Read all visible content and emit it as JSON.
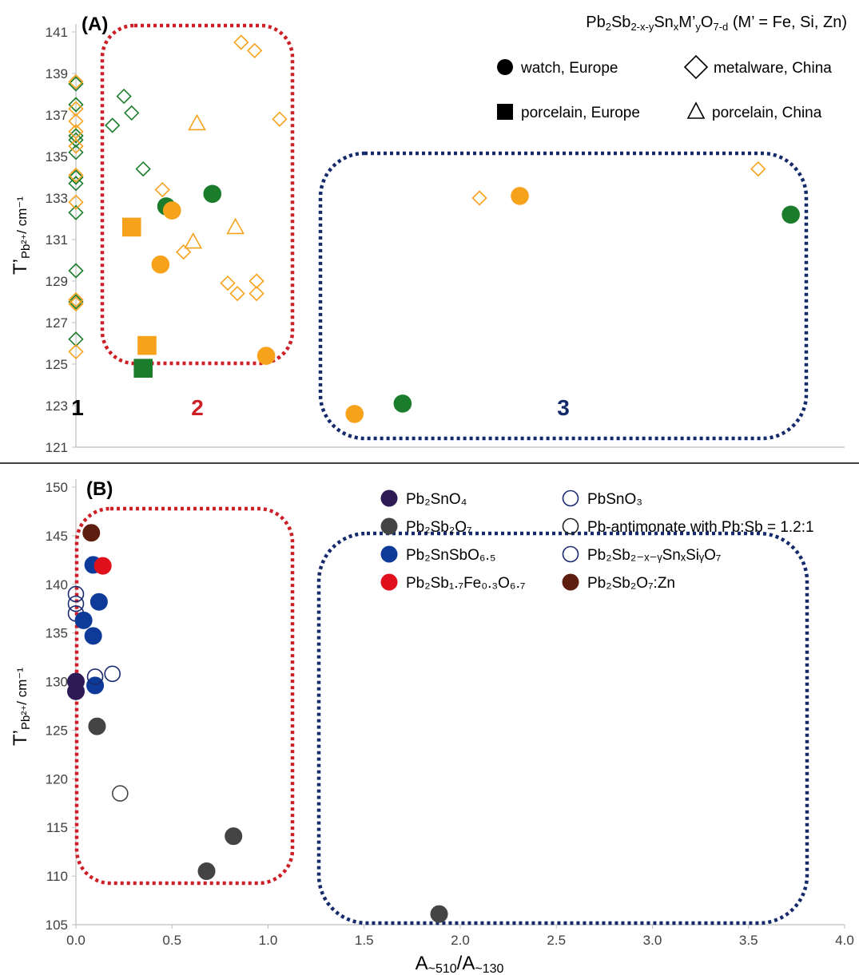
{
  "colors": {
    "green": "#1b7d2c",
    "orange": "#f7a21b",
    "red_dash": "#cc1f26",
    "navy_dash": "#142a6b",
    "purple": "#2e1a55",
    "grey": "#444444",
    "blue": "#0e3a9a",
    "red": "#e0101c",
    "brown": "#5e1e0f",
    "navy_open": "#1a2a70"
  },
  "chart_data": [
    {
      "type": "scatter",
      "panel_label": "(A)",
      "formula": {
        "parts": [
          {
            "t": "Pb",
            "sub": false
          },
          {
            "t": "2",
            "sub": true
          },
          {
            "t": "Sb",
            "sub": false
          },
          {
            "t": "2-x-y",
            "sub": true
          },
          {
            "t": "Sn",
            "sub": false
          },
          {
            "t": "x",
            "sub": true
          },
          {
            "t": "M’",
            "sub": false
          },
          {
            "t": "y",
            "sub": true
          },
          {
            "t": "O",
            "sub": false
          },
          {
            "t": "7-d",
            "sub": true
          },
          {
            "t": " (M’ = Fe, Si, Zn)",
            "sub": false
          }
        ]
      },
      "ylabel": {
        "main": "T’",
        "sub": "Pb²⁺",
        "unit": "/ cm⁻¹"
      },
      "xlim": [
        0,
        4.0
      ],
      "ylim": [
        121,
        141
      ],
      "yticks": [
        "121",
        "123",
        "125",
        "127",
        "129",
        "131",
        "133",
        "135",
        "137",
        "139",
        "141"
      ],
      "legend": [
        {
          "label": "watch, Europe",
          "marker": "circle",
          "fill": true
        },
        {
          "label": "metalware, China",
          "marker": "diamond",
          "fill": false
        },
        {
          "label": "porcelain, Europe",
          "marker": "square",
          "fill": true
        },
        {
          "label": "porcelain, China",
          "marker": "triangle",
          "fill": false
        }
      ],
      "regions": [
        {
          "label": "1",
          "color": "#000000"
        },
        {
          "label": "2",
          "color": "#cc1f26"
        },
        {
          "label": "3",
          "color": "#142a6b"
        }
      ],
      "series": [
        {
          "name": "watch, Europe",
          "marker": "circle",
          "fill": true,
          "points": [
            {
              "x": 0.47,
              "y": 132.6,
              "c": "green"
            },
            {
              "x": 0.71,
              "y": 133.2,
              "c": "green"
            },
            {
              "x": 1.7,
              "y": 123.1,
              "c": "green"
            },
            {
              "x": 3.72,
              "y": 132.2,
              "c": "green"
            },
            {
              "x": 0.5,
              "y": 132.4,
              "c": "orange"
            },
            {
              "x": 0.44,
              "y": 129.8,
              "c": "orange"
            },
            {
              "x": 0.99,
              "y": 125.4,
              "c": "orange"
            },
            {
              "x": 1.45,
              "y": 122.6,
              "c": "orange"
            },
            {
              "x": 2.31,
              "y": 133.1,
              "c": "orange"
            }
          ]
        },
        {
          "name": "porcelain, Europe",
          "marker": "square",
          "fill": true,
          "points": [
            {
              "x": 0.29,
              "y": 131.6,
              "c": "orange"
            },
            {
              "x": 0.37,
              "y": 125.9,
              "c": "orange"
            },
            {
              "x": 0.35,
              "y": 124.8,
              "c": "green"
            }
          ]
        },
        {
          "name": "metalware, China",
          "marker": "diamond",
          "fill": false,
          "points": [
            {
              "x": 0.0,
              "y": 138.5,
              "c": "green"
            },
            {
              "x": 0.0,
              "y": 137.5,
              "c": "green"
            },
            {
              "x": 0.0,
              "y": 136.0,
              "c": "green"
            },
            {
              "x": 0.0,
              "y": 135.8,
              "c": "green"
            },
            {
              "x": 0.0,
              "y": 135.2,
              "c": "green"
            },
            {
              "x": 0.0,
              "y": 134.0,
              "c": "green"
            },
            {
              "x": 0.0,
              "y": 133.7,
              "c": "green"
            },
            {
              "x": 0.0,
              "y": 132.3,
              "c": "green"
            },
            {
              "x": 0.0,
              "y": 129.5,
              "c": "green"
            },
            {
              "x": 0.0,
              "y": 128.0,
              "c": "green"
            },
            {
              "x": 0.0,
              "y": 126.2,
              "c": "green"
            },
            {
              "x": 0.19,
              "y": 136.5,
              "c": "green"
            },
            {
              "x": 0.25,
              "y": 137.9,
              "c": "green"
            },
            {
              "x": 0.29,
              "y": 137.1,
              "c": "green"
            },
            {
              "x": 0.35,
              "y": 134.4,
              "c": "green"
            },
            {
              "x": 0.0,
              "y": 138.6,
              "c": "orange"
            },
            {
              "x": 0.0,
              "y": 137.3,
              "c": "orange"
            },
            {
              "x": 0.0,
              "y": 136.7,
              "c": "orange"
            },
            {
              "x": 0.0,
              "y": 136.2,
              "c": "orange"
            },
            {
              "x": 0.0,
              "y": 135.5,
              "c": "orange"
            },
            {
              "x": 0.0,
              "y": 134.1,
              "c": "orange"
            },
            {
              "x": 0.0,
              "y": 132.8,
              "c": "orange"
            },
            {
              "x": 0.0,
              "y": 128.1,
              "c": "orange"
            },
            {
              "x": 0.0,
              "y": 127.9,
              "c": "orange"
            },
            {
              "x": 0.0,
              "y": 125.6,
              "c": "orange"
            },
            {
              "x": 0.45,
              "y": 133.4,
              "c": "orange"
            },
            {
              "x": 0.56,
              "y": 130.4,
              "c": "orange"
            },
            {
              "x": 0.79,
              "y": 128.9,
              "c": "orange"
            },
            {
              "x": 0.84,
              "y": 128.4,
              "c": "orange"
            },
            {
              "x": 0.86,
              "y": 140.5,
              "c": "orange"
            },
            {
              "x": 0.93,
              "y": 140.1,
              "c": "orange"
            },
            {
              "x": 0.94,
              "y": 129.0,
              "c": "orange"
            },
            {
              "x": 0.94,
              "y": 128.4,
              "c": "orange"
            },
            {
              "x": 1.06,
              "y": 136.8,
              "c": "orange"
            },
            {
              "x": 2.1,
              "y": 133.0,
              "c": "orange"
            },
            {
              "x": 3.55,
              "y": 134.4,
              "c": "orange"
            }
          ]
        },
        {
          "name": "porcelain, China",
          "marker": "triangle",
          "fill": false,
          "points": [
            {
              "x": 0.63,
              "y": 136.6,
              "c": "orange"
            },
            {
              "x": 0.61,
              "y": 130.9,
              "c": "orange"
            },
            {
              "x": 0.83,
              "y": 131.6,
              "c": "orange"
            }
          ]
        }
      ]
    },
    {
      "type": "scatter",
      "panel_label": "(B)",
      "xlabel": {
        "a": "A",
        "sub1": "~510",
        "slash": "/A",
        "sub2": "~130"
      },
      "ylabel": {
        "main": "T’",
        "sub": "Pb²⁺",
        "unit": "/ cm⁻¹"
      },
      "xlim": [
        0,
        4.0
      ],
      "ylim": [
        105,
        150
      ],
      "xticks": [
        "0.0",
        "0.5",
        "1.0",
        "1.5",
        "2.0",
        "2.5",
        "3.0",
        "3.5",
        "4.0"
      ],
      "yticks": [
        "105",
        "110",
        "115",
        "120",
        "125",
        "130",
        "135",
        "140",
        "145",
        "150"
      ],
      "legend": [
        {
          "label": "Pb₂SnO₄",
          "series": "Pb2SnO4"
        },
        {
          "label": "PbSnO₃",
          "series": "PbSnO3"
        },
        {
          "label": "Pb₂Sb₂O₇",
          "series": "Pb2Sb2O7"
        },
        {
          "label": "Pb-antimonate with Pb:Sb = 1.2:1",
          "series": "Pbantimonate"
        },
        {
          "label": "Pb₂SnSbO₆.₅",
          "series": "Pb2SnSbO65"
        },
        {
          "label": "Pb₂Sb₂₋ₓ₋ᵧSnₓSiᵧO₇",
          "series": "Pb2SbSnSi"
        },
        {
          "label": "Pb₂Sb₁.₇Fe₀.₃O₆.₇",
          "series": "Pb2SbFe"
        },
        {
          "label": "Pb₂Sb₂O₇:Zn",
          "series": "Pb2Sb2O7Zn"
        }
      ],
      "series": [
        {
          "id": "Pb2SnO4",
          "name": "Pb₂SnO₄",
          "fill": true,
          "color": "purple",
          "points": [
            {
              "x": 0.0,
              "y": 130.0
            },
            {
              "x": 0.0,
              "y": 129.0
            }
          ]
        },
        {
          "id": "PbSnO3",
          "name": "PbSnO₃",
          "fill": false,
          "color": "navy_open",
          "points": [
            {
              "x": 0.0,
              "y": 139.0
            },
            {
              "x": 0.0,
              "y": 138.0
            },
            {
              "x": 0.0,
              "y": 137.0
            }
          ]
        },
        {
          "id": "Pb2Sb2O7",
          "name": "Pb₂Sb₂O₇",
          "fill": true,
          "color": "grey",
          "points": [
            {
              "x": 0.11,
              "y": 125.4
            },
            {
              "x": 0.68,
              "y": 110.5
            },
            {
              "x": 0.82,
              "y": 114.1
            },
            {
              "x": 1.89,
              "y": 106.1
            }
          ]
        },
        {
          "id": "Pbantimonate",
          "name": "Pb-antimonate with Pb:Sb = 1.2:1",
          "fill": false,
          "color": "grey",
          "points": [
            {
              "x": 0.23,
              "y": 118.5
            }
          ]
        },
        {
          "id": "Pb2SnSbO65",
          "name": "Pb₂SnSbO₆.₅",
          "fill": true,
          "color": "blue",
          "points": [
            {
              "x": 0.09,
              "y": 142.0
            },
            {
              "x": 0.12,
              "y": 138.2
            },
            {
              "x": 0.04,
              "y": 136.3
            },
            {
              "x": 0.09,
              "y": 134.7
            },
            {
              "x": 0.1,
              "y": 129.6
            }
          ]
        },
        {
          "id": "Pb2SbSnSi",
          "name": "Pb₂Sb₂₋ₓ₋ᵧSnₓSiᵧO₇",
          "fill": false,
          "color": "navy_open",
          "points": [
            {
              "x": 0.1,
              "y": 130.5
            },
            {
              "x": 0.19,
              "y": 130.8
            }
          ]
        },
        {
          "id": "Pb2SbFe",
          "name": "Pb₂Sb₁.₇Fe₀.₃O₆.₇",
          "fill": true,
          "color": "red",
          "points": [
            {
              "x": 0.14,
              "y": 141.9
            }
          ]
        },
        {
          "id": "Pb2Sb2O7Zn",
          "name": "Pb₂Sb₂O₇:Zn",
          "fill": true,
          "color": "brown",
          "points": [
            {
              "x": 0.08,
              "y": 145.3
            }
          ]
        }
      ]
    }
  ]
}
